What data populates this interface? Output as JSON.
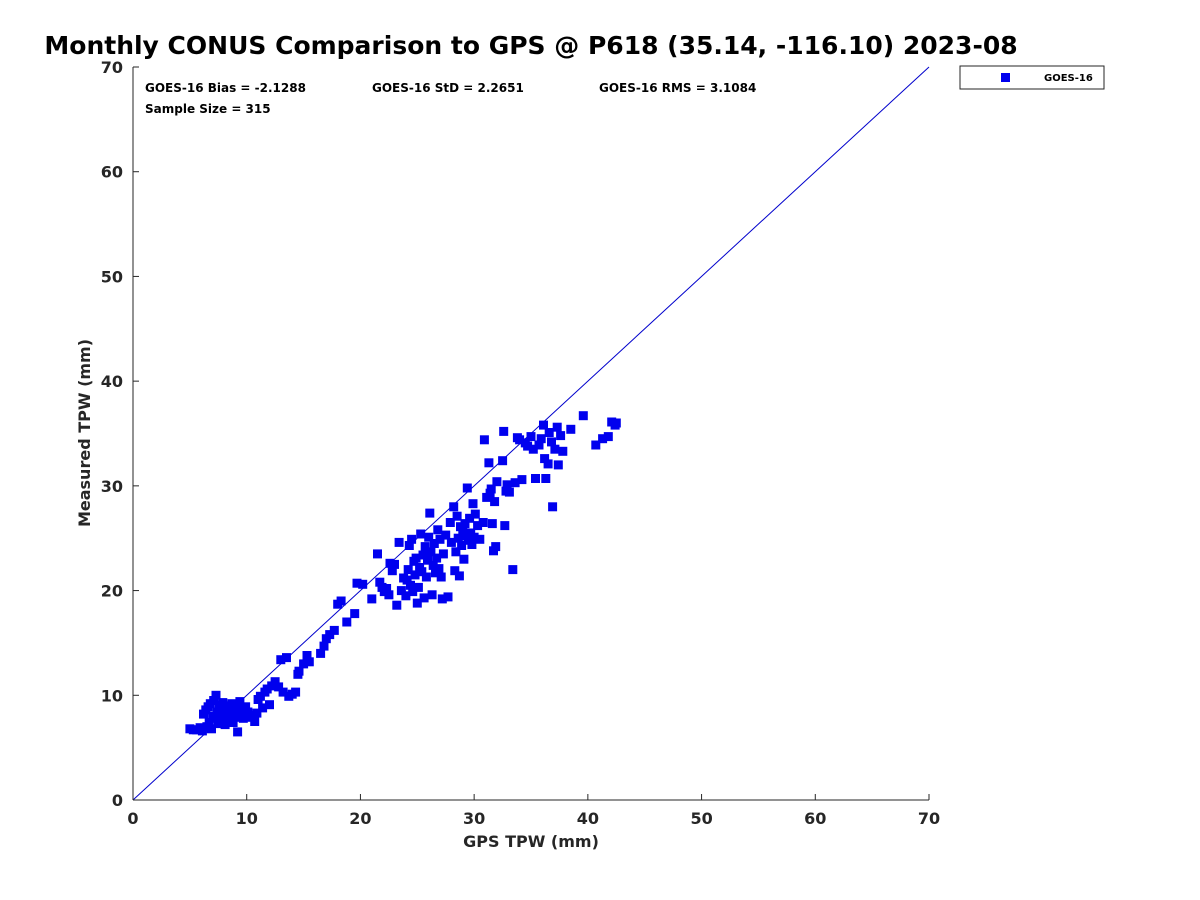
{
  "chart_data": {
    "type": "scatter",
    "title": "Monthly CONUS Comparison to GPS @ P618 (35.14, -116.10) 2023-08",
    "xlabel": "GPS TPW (mm)",
    "ylabel": "Measured TPW (mm)",
    "xlim": [
      0,
      70
    ],
    "ylim": [
      0,
      70
    ],
    "xticks": [
      0,
      10,
      20,
      30,
      40,
      50,
      60,
      70
    ],
    "yticks": [
      0,
      10,
      20,
      30,
      40,
      50,
      60,
      70
    ],
    "xtick_labels": [
      "0",
      "10",
      "20",
      "30",
      "40",
      "50",
      "60",
      "70"
    ],
    "ytick_labels": [
      "0",
      "10",
      "20",
      "30",
      "40",
      "50",
      "60",
      "70"
    ],
    "grid": false,
    "legend_position": "top-right, outside plot area",
    "reference_line": {
      "from": [
        0,
        0
      ],
      "to": [
        70,
        70
      ],
      "color": "#0000cc"
    },
    "annotations": {
      "bias": "GOES-16 Bias = -2.1288",
      "std": "GOES-16 StD = 2.2651",
      "rms": "GOES-16 RMS = 3.1084",
      "sample": "Sample Size = 315"
    },
    "series": [
      {
        "name": "GOES-16",
        "color": "#0000ee",
        "marker": "square",
        "points": [
          [
            5.0,
            6.8
          ],
          [
            5.3,
            6.7
          ],
          [
            5.6,
            6.7
          ],
          [
            5.9,
            6.9
          ],
          [
            6.1,
            6.6
          ],
          [
            6.2,
            8.2
          ],
          [
            6.4,
            8.6
          ],
          [
            6.5,
            7.0
          ],
          [
            6.6,
            8.9
          ],
          [
            6.7,
            7.4
          ],
          [
            6.8,
            9.2
          ],
          [
            6.9,
            6.8
          ],
          [
            7.0,
            8.0
          ],
          [
            7.1,
            9.5
          ],
          [
            7.2,
            7.8
          ],
          [
            7.3,
            10.0
          ],
          [
            7.4,
            8.4
          ],
          [
            7.5,
            7.3
          ],
          [
            7.6,
            9.1
          ],
          [
            7.7,
            8.7
          ],
          [
            7.8,
            7.6
          ],
          [
            7.9,
            9.3
          ],
          [
            8.0,
            8.1
          ],
          [
            8.1,
            7.2
          ],
          [
            8.2,
            8.9
          ],
          [
            8.3,
            9.0
          ],
          [
            8.4,
            7.7
          ],
          [
            8.5,
            8.5
          ],
          [
            8.6,
            8.0
          ],
          [
            8.7,
            9.2
          ],
          [
            8.8,
            7.4
          ],
          [
            8.9,
            8.3
          ],
          [
            9.0,
            8.8
          ],
          [
            9.1,
            7.9
          ],
          [
            9.2,
            6.5
          ],
          [
            9.3,
            8.6
          ],
          [
            9.4,
            9.4
          ],
          [
            9.5,
            8.2
          ],
          [
            9.7,
            7.8
          ],
          [
            9.9,
            8.9
          ],
          [
            10.1,
            8.4
          ],
          [
            10.3,
            7.9
          ],
          [
            10.5,
            8.1
          ],
          [
            10.7,
            7.5
          ],
          [
            10.9,
            8.3
          ],
          [
            11.0,
            9.6
          ],
          [
            11.2,
            9.9
          ],
          [
            11.4,
            8.8
          ],
          [
            11.6,
            10.3
          ],
          [
            11.8,
            10.6
          ],
          [
            12.0,
            9.1
          ],
          [
            12.2,
            10.9
          ],
          [
            12.5,
            11.3
          ],
          [
            12.8,
            10.8
          ],
          [
            13.0,
            13.4
          ],
          [
            13.2,
            10.3
          ],
          [
            13.5,
            13.6
          ],
          [
            13.7,
            9.9
          ],
          [
            14.0,
            10.1
          ],
          [
            14.3,
            10.3
          ],
          [
            14.5,
            12.0
          ],
          [
            14.6,
            12.3
          ],
          [
            15.0,
            13.0
          ],
          [
            15.3,
            13.8
          ],
          [
            15.5,
            13.2
          ],
          [
            16.5,
            14.0
          ],
          [
            16.8,
            14.7
          ],
          [
            17.0,
            15.4
          ],
          [
            17.3,
            15.8
          ],
          [
            17.7,
            16.2
          ],
          [
            18.0,
            18.7
          ],
          [
            18.3,
            19.0
          ],
          [
            18.8,
            17.0
          ],
          [
            19.5,
            17.8
          ],
          [
            19.7,
            20.7
          ],
          [
            20.2,
            20.6
          ],
          [
            21.0,
            19.2
          ],
          [
            21.5,
            23.5
          ],
          [
            21.7,
            20.8
          ],
          [
            21.9,
            20.3
          ],
          [
            22.1,
            19.9
          ],
          [
            22.3,
            20.2
          ],
          [
            22.5,
            19.6
          ],
          [
            22.6,
            22.6
          ],
          [
            22.8,
            21.9
          ],
          [
            23.0,
            22.5
          ],
          [
            23.2,
            18.6
          ],
          [
            23.4,
            24.6
          ],
          [
            23.6,
            20.0
          ],
          [
            23.8,
            21.2
          ],
          [
            24.0,
            19.5
          ],
          [
            24.1,
            21.0
          ],
          [
            24.2,
            22.0
          ],
          [
            24.3,
            24.3
          ],
          [
            24.4,
            20.5
          ],
          [
            24.5,
            24.9
          ],
          [
            24.6,
            19.9
          ],
          [
            24.7,
            22.8
          ],
          [
            24.8,
            21.5
          ],
          [
            24.9,
            23.1
          ],
          [
            25.0,
            18.8
          ],
          [
            25.1,
            20.3
          ],
          [
            25.2,
            22.2
          ],
          [
            25.3,
            25.4
          ],
          [
            25.4,
            21.8
          ],
          [
            25.5,
            23.4
          ],
          [
            25.6,
            19.3
          ],
          [
            25.7,
            24.2
          ],
          [
            25.8,
            21.3
          ],
          [
            25.9,
            22.9
          ],
          [
            26.0,
            25.1
          ],
          [
            26.1,
            27.4
          ],
          [
            26.2,
            23.7
          ],
          [
            26.3,
            19.6
          ],
          [
            26.4,
            22.4
          ],
          [
            26.5,
            24.5
          ],
          [
            26.6,
            21.7
          ],
          [
            26.7,
            23.1
          ],
          [
            26.8,
            25.8
          ],
          [
            26.9,
            22.1
          ],
          [
            27.0,
            24.9
          ],
          [
            27.1,
            21.3
          ],
          [
            27.2,
            19.2
          ],
          [
            27.3,
            23.5
          ],
          [
            27.5,
            25.3
          ],
          [
            27.7,
            19.4
          ],
          [
            27.9,
            26.5
          ],
          [
            28.0,
            24.6
          ],
          [
            28.2,
            28.0
          ],
          [
            28.3,
            21.9
          ],
          [
            28.4,
            23.7
          ],
          [
            28.5,
            27.1
          ],
          [
            28.6,
            25.0
          ],
          [
            28.7,
            21.4
          ],
          [
            28.8,
            26.1
          ],
          [
            28.9,
            24.3
          ],
          [
            29.0,
            25.7
          ],
          [
            29.1,
            23.0
          ],
          [
            29.2,
            26.4
          ],
          [
            29.3,
            25.2
          ],
          [
            29.4,
            29.8
          ],
          [
            29.5,
            24.8
          ],
          [
            29.6,
            26.9
          ],
          [
            29.7,
            25.5
          ],
          [
            29.8,
            24.4
          ],
          [
            29.9,
            28.3
          ],
          [
            30.0,
            25.1
          ],
          [
            30.1,
            27.3
          ],
          [
            30.3,
            26.2
          ],
          [
            30.5,
            24.9
          ],
          [
            30.8,
            26.5
          ],
          [
            30.9,
            34.4
          ],
          [
            31.1,
            28.9
          ],
          [
            31.3,
            32.2
          ],
          [
            31.4,
            29.3
          ],
          [
            31.5,
            29.7
          ],
          [
            31.6,
            26.4
          ],
          [
            31.7,
            23.8
          ],
          [
            31.8,
            28.5
          ],
          [
            31.9,
            24.2
          ],
          [
            32.0,
            30.4
          ],
          [
            32.5,
            32.4
          ],
          [
            32.6,
            35.2
          ],
          [
            32.7,
            26.2
          ],
          [
            32.8,
            29.5
          ],
          [
            32.9,
            30.1
          ],
          [
            33.1,
            29.4
          ],
          [
            33.4,
            22.0
          ],
          [
            33.6,
            30.3
          ],
          [
            33.8,
            34.6
          ],
          [
            34.0,
            34.4
          ],
          [
            34.2,
            30.6
          ],
          [
            34.5,
            34.1
          ],
          [
            34.7,
            33.8
          ],
          [
            35.0,
            34.7
          ],
          [
            35.2,
            33.5
          ],
          [
            35.4,
            30.7
          ],
          [
            35.7,
            33.9
          ],
          [
            35.9,
            34.5
          ],
          [
            36.1,
            35.8
          ],
          [
            36.2,
            32.6
          ],
          [
            36.3,
            30.7
          ],
          [
            36.5,
            32.1
          ],
          [
            36.6,
            35.1
          ],
          [
            36.8,
            34.2
          ],
          [
            36.9,
            28.0
          ],
          [
            37.1,
            33.5
          ],
          [
            37.3,
            35.6
          ],
          [
            37.4,
            32.0
          ],
          [
            37.6,
            34.8
          ],
          [
            37.8,
            33.3
          ],
          [
            38.5,
            35.4
          ],
          [
            39.6,
            36.7
          ],
          [
            40.7,
            33.9
          ],
          [
            41.3,
            34.5
          ],
          [
            41.8,
            34.7
          ],
          [
            42.1,
            36.1
          ],
          [
            42.4,
            35.8
          ],
          [
            42.5,
            36.0
          ]
        ]
      }
    ]
  }
}
